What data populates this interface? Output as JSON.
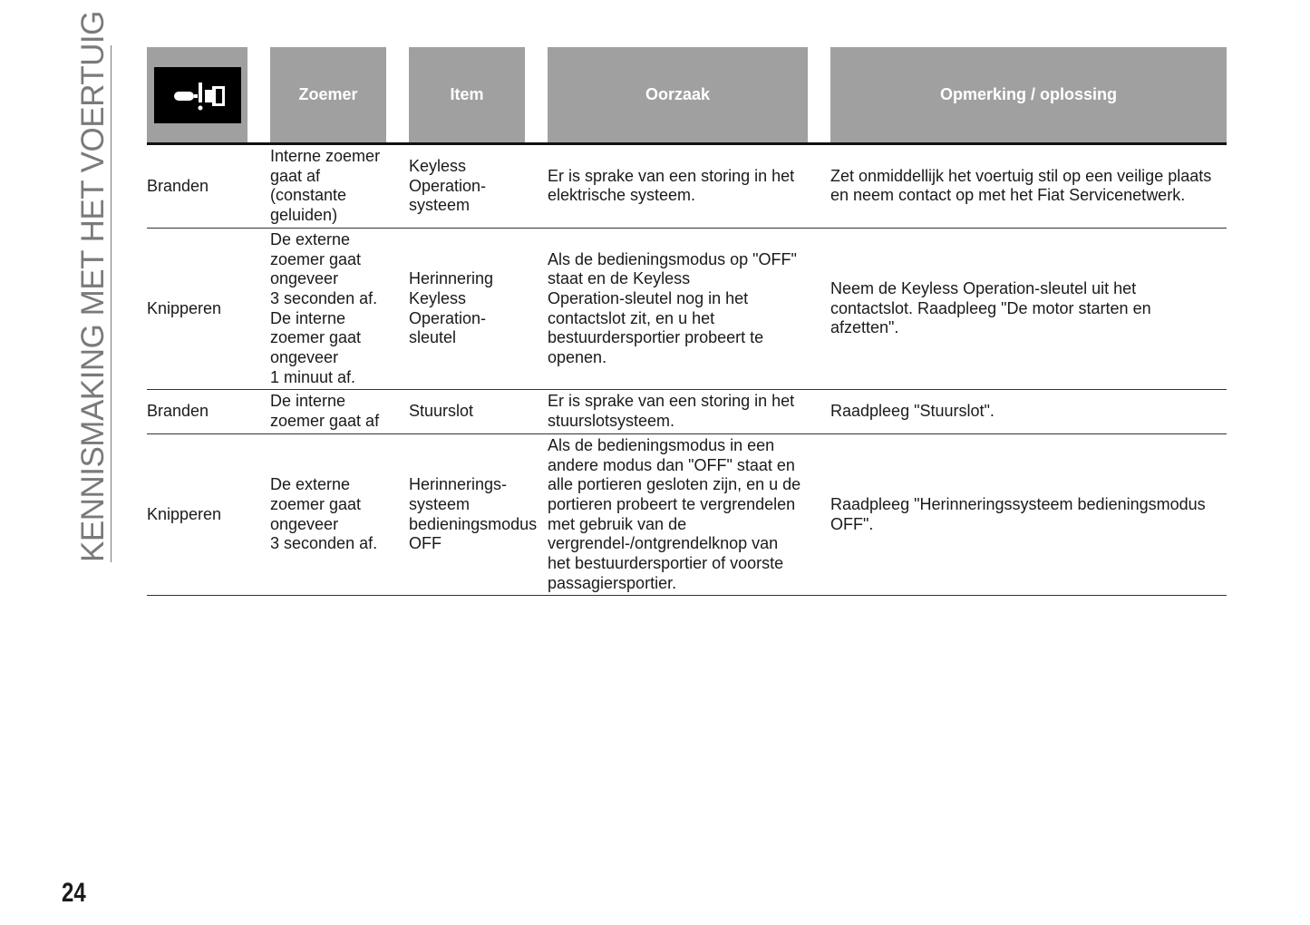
{
  "side_title": "KENNISMAKING MET HET VOERTUIG",
  "page_number": "24",
  "header": {
    "icon": "seatbelt-warning-icon",
    "columns": [
      "Zoemer",
      "Item",
      "Oorzaak",
      "Opmerking / oplossing"
    ]
  },
  "rows": [
    {
      "state": "Branden",
      "zoemer": "Interne zoemer\ngaat af\n(constante\ngeluiden)",
      "item": "Keyless\nOperation-\nsysteem",
      "oorzaak": "Er is sprake van een storing in het\nelektrische systeem.",
      "opmerking": "Zet onmiddellijk het voertuig stil op een veilige plaats\nen neem contact op met het Fiat Servicenetwerk."
    },
    {
      "state": "Knipperen",
      "zoemer": "De externe\nzoemer gaat\nongeveer\n3 seconden af.\nDe interne\nzoemer gaat\nongeveer\n1 minuut af.",
      "item": "Herinnering\nKeyless\nOperation-\nsleutel",
      "oorzaak": "Als de bedieningsmodus op \"OFF\"\nstaat en de Keyless\nOperation-sleutel nog in het\ncontactslot zit, en u het\nbestuurdersportier probeert te\nopenen.",
      "opmerking": "Neem de Keyless Operation-sleutel uit het\ncontactslot. Raadpleeg \"De motor starten en\nafzetten\"."
    },
    {
      "state": "Branden",
      "zoemer": "De interne\nzoemer gaat af",
      "item": "Stuurslot",
      "oorzaak": "Er is sprake van een storing in het\nstuurslotsysteem.",
      "opmerking": "Raadpleeg \"Stuurslot\"."
    },
    {
      "state": "Knipperen",
      "zoemer": "De externe\nzoemer gaat\nongeveer\n3 seconden af.",
      "item": "Herinnerings-\nsysteem\nbedieningsmodus\nOFF",
      "oorzaak": "Als de bedieningsmodus in een\nandere modus dan \"OFF\" staat en\nalle portieren gesloten zijn, en u de\nportieren probeert te vergrendelen\nmet gebruik van de\nvergrendel-/ontgrendelknop van\nhet bestuurdersportier of voorste\npassagiersportier.",
      "opmerking": "Raadpleeg \"Herinneringssysteem bedieningsmodus\nOFF\"."
    }
  ]
}
